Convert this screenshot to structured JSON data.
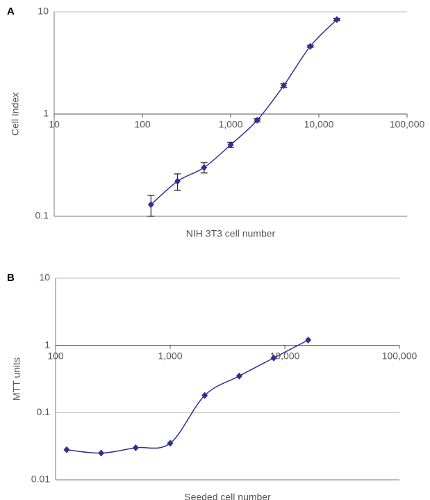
{
  "chart_data": [
    {
      "type": "line",
      "panel": "A",
      "xlabel": "NIH 3T3 cell number",
      "ylabel": "Cell Index",
      "xscale": "log",
      "yscale": "log",
      "xaxis_at": 1,
      "grid": true,
      "xlim": [
        10,
        100000
      ],
      "ylim": [
        0.1,
        10
      ],
      "xticks": [
        10,
        100,
        {
          "value": 1000,
          "label": "1,000"
        },
        {
          "value": 10000,
          "label": "10,000"
        },
        {
          "value": 100000,
          "label": "100,000"
        }
      ],
      "yticks": [
        0.1,
        1,
        10
      ],
      "x": [
        125,
        250,
        500,
        1000,
        2000,
        4000,
        8000,
        16000
      ],
      "series": [
        {
          "color": "#2e3192",
          "values": [
            0.13,
            0.22,
            0.3,
            0.5,
            0.87,
            1.9,
            4.6,
            8.4
          ],
          "errors": [
            0.03,
            0.04,
            0.035,
            0.03,
            0.03,
            0.08,
            0.1,
            0.2
          ]
        }
      ]
    },
    {
      "type": "line",
      "panel": "B",
      "xlabel": "Seeded cell number",
      "ylabel": "MTT units",
      "xscale": "log",
      "yscale": "log",
      "xaxis_at": 1,
      "grid": true,
      "xlim": [
        100,
        100000
      ],
      "ylim": [
        0.01,
        10
      ],
      "xticks": [
        100,
        {
          "value": 1000,
          "label": "1,000"
        },
        {
          "value": 10000,
          "label": "10,000"
        },
        {
          "value": 100000,
          "label": "100,000"
        }
      ],
      "yticks": [
        0.01,
        0.1,
        1,
        10
      ],
      "x": [
        125,
        250,
        500,
        1000,
        2000,
        4000,
        8000,
        16000
      ],
      "series": [
        {
          "color": "#2e3192",
          "values": [
            0.028,
            0.025,
            0.03,
            0.035,
            0.18,
            0.35,
            0.65,
            1.2
          ]
        }
      ]
    }
  ]
}
